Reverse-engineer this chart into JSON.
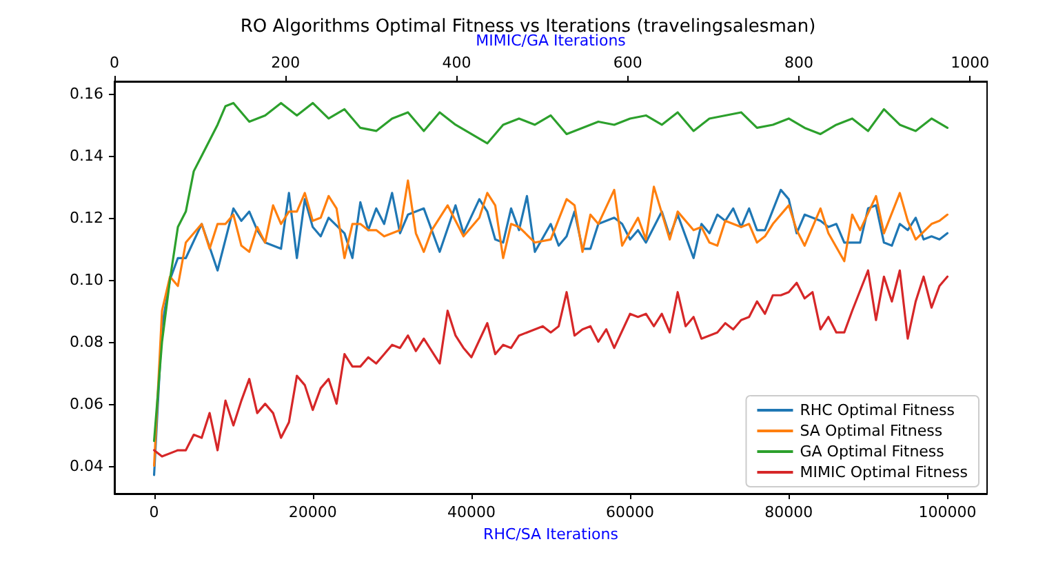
{
  "chart_data": {
    "type": "line",
    "title": "RO Algorithms Optimal Fitness vs Iterations (travelingsalesman)",
    "xlabel": "RHC/SA Iterations",
    "x2label": "MIMIC/GA Iterations",
    "xlim": [
      -5000,
      105000
    ],
    "xticks": [
      0,
      20000,
      40000,
      60000,
      80000,
      100000
    ],
    "x2lim": [
      0,
      1020
    ],
    "x2ticks": [
      0,
      200,
      400,
      600,
      800,
      1000
    ],
    "ylim": [
      0.031,
      0.164
    ],
    "yticks": [
      0.04,
      0.06,
      0.08,
      {
        "value": 0.1,
        "label": "0.10"
      },
      0.12,
      0.14,
      0.16
    ],
    "grid": false,
    "legend": "bottom right",
    "marker": "none",
    "line_style": "solid",
    "series": [
      {
        "name": "RHC Optimal Fitness",
        "color": "#1f77b4",
        "x": [
          0,
          1000,
          2000,
          3000,
          4000,
          6000,
          8000,
          10000,
          11000,
          12000,
          13000,
          14000,
          16000,
          17000,
          18000,
          19000,
          20000,
          21000,
          22000,
          24000,
          25000,
          26000,
          27000,
          28000,
          29000,
          30000,
          31000,
          32000,
          34000,
          36000,
          38000,
          39000,
          41000,
          42000,
          43000,
          44000,
          45000,
          46000,
          47000,
          48000,
          50000,
          51000,
          52000,
          53000,
          54000,
          55000,
          56000,
          58000,
          59000,
          60000,
          61000,
          62000,
          64000,
          65000,
          66000,
          68000,
          69000,
          70000,
          71000,
          72000,
          73000,
          74000,
          75000,
          76000,
          77000,
          79000,
          80000,
          81000,
          82000,
          84000,
          85000,
          86000,
          87000,
          89000,
          90000,
          91000,
          92000,
          93000,
          94000,
          95000,
          96000,
          97000,
          98000,
          99000,
          100000
        ],
        "values": [
          0.037,
          0.085,
          0.1,
          0.107,
          0.107,
          0.118,
          0.103,
          0.123,
          0.119,
          0.122,
          0.116,
          0.112,
          0.11,
          0.128,
          0.107,
          0.126,
          0.117,
          0.114,
          0.12,
          0.115,
          0.107,
          0.125,
          0.116,
          0.123,
          0.118,
          0.128,
          0.115,
          0.121,
          0.123,
          0.109,
          0.124,
          0.115,
          0.126,
          0.122,
          0.113,
          0.112,
          0.123,
          0.116,
          0.127,
          0.109,
          0.118,
          0.111,
          0.114,
          0.122,
          0.11,
          0.11,
          0.118,
          0.12,
          0.118,
          0.113,
          0.116,
          0.112,
          0.122,
          0.114,
          0.121,
          0.107,
          0.118,
          0.115,
          0.121,
          0.119,
          0.123,
          0.117,
          0.123,
          0.116,
          0.116,
          0.129,
          0.126,
          0.115,
          0.121,
          0.119,
          0.117,
          0.118,
          0.112,
          0.112,
          0.123,
          0.124,
          0.112,
          0.111,
          0.118,
          0.116,
          0.12,
          0.113,
          0.114,
          0.113,
          0.115
        ]
      },
      {
        "name": "SA Optimal Fitness",
        "color": "#ff7f0e",
        "x": [
          0,
          1000,
          2000,
          3000,
          4000,
          6000,
          7000,
          8000,
          9000,
          10000,
          11000,
          12000,
          13000,
          14000,
          15000,
          16000,
          17000,
          18000,
          19000,
          20000,
          21000,
          22000,
          23000,
          24000,
          25000,
          26000,
          27000,
          28000,
          29000,
          31000,
          32000,
          33000,
          34000,
          35000,
          37000,
          39000,
          41000,
          42000,
          43000,
          44000,
          45000,
          46000,
          48000,
          50000,
          52000,
          53000,
          54000,
          55000,
          56000,
          58000,
          59000,
          61000,
          62000,
          63000,
          65000,
          66000,
          68000,
          69000,
          70000,
          71000,
          72000,
          74000,
          75000,
          76000,
          77000,
          78000,
          80000,
          81000,
          82000,
          83000,
          84000,
          85000,
          87000,
          88000,
          89000,
          91000,
          92000,
          94000,
          95000,
          96000,
          98000,
          99000,
          100000
        ],
        "values": [
          0.04,
          0.09,
          0.101,
          0.098,
          0.112,
          0.118,
          0.11,
          0.118,
          0.118,
          0.121,
          0.111,
          0.109,
          0.117,
          0.112,
          0.124,
          0.118,
          0.122,
          0.122,
          0.128,
          0.119,
          0.12,
          0.127,
          0.123,
          0.107,
          0.118,
          0.118,
          0.116,
          0.116,
          0.114,
          0.116,
          0.132,
          0.115,
          0.109,
          0.116,
          0.124,
          0.114,
          0.12,
          0.128,
          0.124,
          0.107,
          0.118,
          0.117,
          0.112,
          0.113,
          0.126,
          0.124,
          0.109,
          0.121,
          0.118,
          0.129,
          0.111,
          0.12,
          0.113,
          0.13,
          0.113,
          0.122,
          0.116,
          0.117,
          0.112,
          0.111,
          0.119,
          0.117,
          0.118,
          0.112,
          0.114,
          0.118,
          0.124,
          0.116,
          0.111,
          0.117,
          0.123,
          0.115,
          0.106,
          0.121,
          0.116,
          0.127,
          0.115,
          0.128,
          0.119,
          0.113,
          0.118,
          0.119,
          0.121
        ]
      },
      {
        "name": "GA Optimal Fitness",
        "color": "#2ca02c",
        "x": [
          0,
          1000,
          2000,
          3000,
          4000,
          5000,
          6000,
          8000,
          9000,
          10000,
          12000,
          14000,
          16000,
          18000,
          20000,
          22000,
          24000,
          26000,
          28000,
          30000,
          32000,
          34000,
          36000,
          38000,
          40000,
          42000,
          44000,
          46000,
          48000,
          50000,
          52000,
          54000,
          56000,
          58000,
          60000,
          62000,
          64000,
          66000,
          68000,
          70000,
          72000,
          74000,
          76000,
          78000,
          80000,
          82000,
          84000,
          86000,
          88000,
          90000,
          92000,
          94000,
          96000,
          98000,
          100000
        ],
        "values": [
          0.048,
          0.08,
          0.1,
          0.117,
          0.122,
          0.135,
          0.14,
          0.15,
          0.156,
          0.157,
          0.151,
          0.153,
          0.157,
          0.153,
          0.157,
          0.152,
          0.155,
          0.149,
          0.148,
          0.152,
          0.154,
          0.148,
          0.154,
          0.15,
          0.147,
          0.144,
          0.15,
          0.152,
          0.15,
          0.153,
          0.147,
          0.149,
          0.151,
          0.15,
          0.152,
          0.153,
          0.15,
          0.154,
          0.148,
          0.152,
          0.153,
          0.154,
          0.149,
          0.15,
          0.152,
          0.149,
          0.147,
          0.15,
          0.152,
          0.148,
          0.155,
          0.15,
          0.148,
          0.152,
          0.149
        ]
      },
      {
        "name": "MIMIC Optimal Fitness",
        "color": "#d62728",
        "x": [
          0,
          1000,
          3000,
          4000,
          5000,
          6000,
          7000,
          8000,
          9000,
          10000,
          11000,
          12000,
          13000,
          14000,
          15000,
          16000,
          17000,
          18000,
          19000,
          20000,
          21000,
          22000,
          23000,
          24000,
          25000,
          26000,
          27000,
          28000,
          29000,
          30000,
          31000,
          32000,
          33000,
          34000,
          36000,
          37000,
          38000,
          39000,
          40000,
          42000,
          43000,
          44000,
          45000,
          46000,
          48000,
          49000,
          50000,
          51000,
          52000,
          53000,
          54000,
          55000,
          56000,
          57000,
          58000,
          60000,
          61000,
          62000,
          63000,
          64000,
          65000,
          66000,
          67000,
          68000,
          69000,
          70000,
          71000,
          72000,
          73000,
          74000,
          75000,
          76000,
          77000,
          78000,
          79000,
          80000,
          81000,
          82000,
          83000,
          84000,
          85000,
          86000,
          87000,
          88000,
          90000,
          91000,
          92000,
          93000,
          94000,
          95000,
          96000,
          97000,
          98000,
          99000,
          100000
        ],
        "values": [
          0.045,
          0.043,
          0.045,
          0.045,
          0.05,
          0.049,
          0.057,
          0.045,
          0.061,
          0.053,
          0.061,
          0.068,
          0.057,
          0.06,
          0.057,
          0.049,
          0.054,
          0.069,
          0.066,
          0.058,
          0.065,
          0.068,
          0.06,
          0.076,
          0.072,
          0.072,
          0.075,
          0.073,
          0.076,
          0.079,
          0.078,
          0.082,
          0.077,
          0.081,
          0.073,
          0.09,
          0.082,
          0.078,
          0.075,
          0.086,
          0.076,
          0.079,
          0.078,
          0.082,
          0.084,
          0.085,
          0.083,
          0.085,
          0.096,
          0.082,
          0.084,
          0.085,
          0.08,
          0.084,
          0.078,
          0.089,
          0.088,
          0.089,
          0.085,
          0.089,
          0.083,
          0.096,
          0.085,
          0.088,
          0.081,
          0.082,
          0.083,
          0.086,
          0.084,
          0.087,
          0.088,
          0.093,
          0.089,
          0.095,
          0.095,
          0.096,
          0.099,
          0.094,
          0.096,
          0.084,
          0.088,
          0.083,
          0.083,
          0.09,
          0.103,
          0.087,
          0.101,
          0.093,
          0.103,
          0.081,
          0.093,
          0.101,
          0.091,
          0.098,
          0.101
        ]
      }
    ]
  }
}
